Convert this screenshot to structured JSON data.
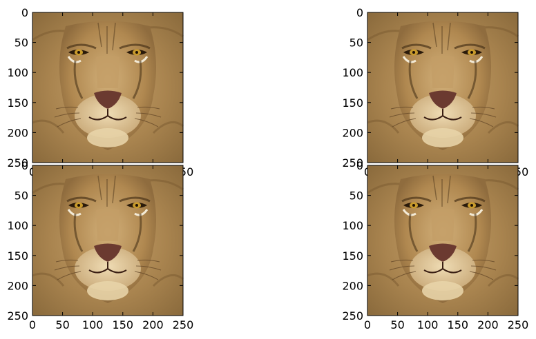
{
  "chart_data": [
    {
      "type": "image",
      "subject": "lion face",
      "xlim": [
        0,
        250
      ],
      "ylim": [
        250,
        0
      ],
      "xticks": [
        "0",
        "50",
        "100",
        "150",
        "200",
        "250"
      ],
      "yticks": [
        "0",
        "50",
        "100",
        "150",
        "200",
        "250"
      ]
    },
    {
      "type": "image",
      "subject": "lion face",
      "xlim": [
        0,
        250
      ],
      "ylim": [
        250,
        0
      ],
      "xticks": [
        "0",
        "50",
        "100",
        "150",
        "200",
        "250"
      ],
      "yticks": [
        "0",
        "50",
        "100",
        "150",
        "200",
        "250"
      ]
    },
    {
      "type": "image",
      "subject": "lion face",
      "xlim": [
        0,
        250
      ],
      "ylim": [
        250,
        0
      ],
      "xticks": [
        "0",
        "50",
        "100",
        "150",
        "200",
        "250"
      ],
      "yticks": [
        "0",
        "50",
        "100",
        "150",
        "200",
        "250"
      ]
    },
    {
      "type": "image",
      "subject": "lion face",
      "xlim": [
        0,
        250
      ],
      "ylim": [
        250,
        0
      ],
      "xticks": [
        "0",
        "50",
        "100",
        "150",
        "200",
        "250"
      ],
      "yticks": [
        "0",
        "50",
        "100",
        "150",
        "200",
        "250"
      ]
    }
  ],
  "colors": {
    "mane": "#9c7a45",
    "fur": "#b8935c",
    "fur_light": "#d9c08f",
    "nose": "#6b3a30",
    "eye": "#c89a2c"
  }
}
